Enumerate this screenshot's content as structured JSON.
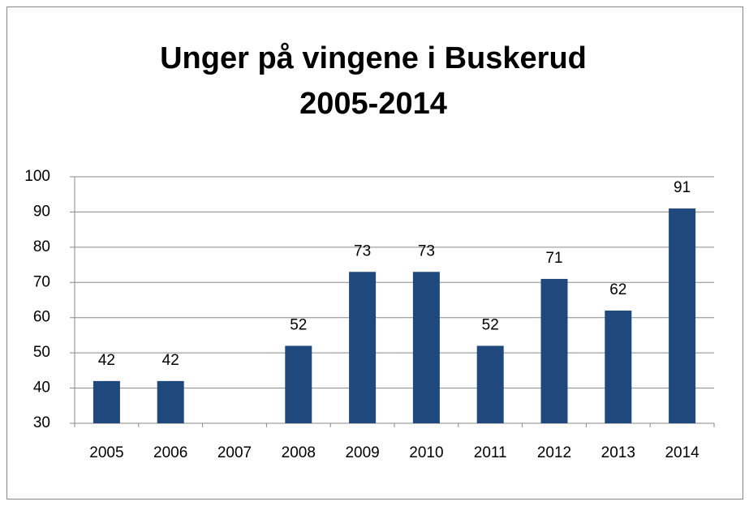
{
  "chart_data": {
    "type": "bar",
    "title": [
      "Unger på vingene i Buskerud",
      "2005-2014"
    ],
    "categories": [
      "2005",
      "2006",
      "2007",
      "2008",
      "2009",
      "2010",
      "2011",
      "2012",
      "2013",
      "2014"
    ],
    "values": [
      42,
      42,
      30,
      52,
      73,
      73,
      52,
      71,
      62,
      91
    ],
    "color": "#1f497d",
    "ylim": [
      30,
      100
    ],
    "yticks": [
      30,
      40,
      50,
      60,
      70,
      80,
      90,
      100
    ],
    "grid": true
  }
}
